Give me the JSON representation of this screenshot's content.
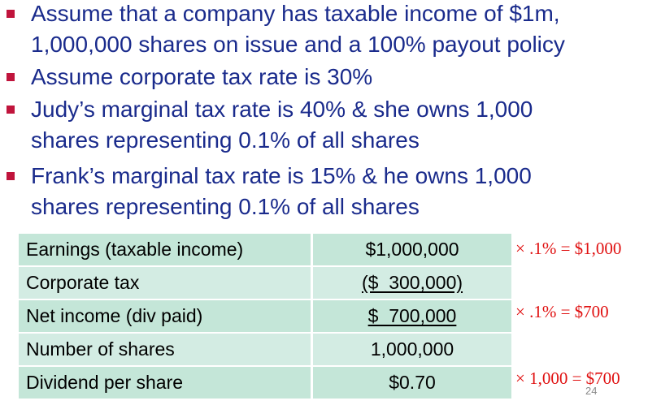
{
  "bullets": [
    {
      "lines": [
        "Assume that a company has taxable income of $1m,",
        "1,000,000 shares on issue and a 100% payout policy"
      ]
    },
    {
      "lines": [
        "Assume corporate tax rate is 30%"
      ]
    },
    {
      "lines": [
        "Judy’s marginal tax rate is 40% & she owns 1,000",
        "shares representing 0.1% of all shares"
      ]
    },
    {
      "lines": [
        "Frank’s marginal tax rate is 15% & he owns 1,000",
        "shares representing 0.1% of all shares"
      ]
    }
  ],
  "table": {
    "rows": [
      {
        "label": "Earnings (taxable income)",
        "value": "$1,000,000"
      },
      {
        "label": "Corporate tax",
        "value": "($  300,000)"
      },
      {
        "label": "Net income (div paid)",
        "value": "$  700,000"
      },
      {
        "label": "Number of shares",
        "value": "1,000,000"
      },
      {
        "label": "Dividend per share",
        "value": "$0.70"
      }
    ]
  },
  "annotations": [
    "× .1% = $1,000",
    "× .1% = $700",
    "× 1,000 = $700"
  ],
  "page_number": "24",
  "colors": {
    "text": "#1a2b8c",
    "bullet_marker": "#c0143c",
    "annotation": "#e01010",
    "table_row_dark": "#c4e6d8",
    "table_row_light": "#d3ece3"
  }
}
